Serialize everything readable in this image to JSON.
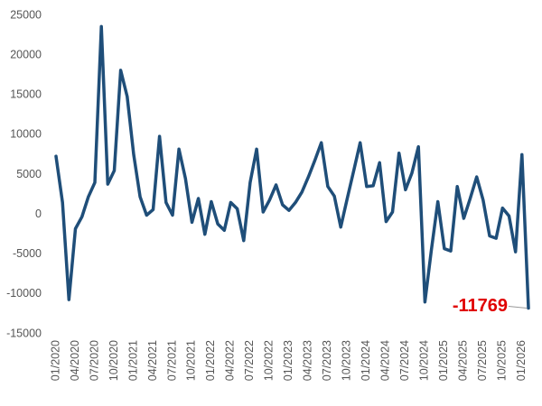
{
  "chart_data": {
    "type": "line",
    "categories": [
      "01/2020",
      null,
      null,
      "04/2020",
      null,
      null,
      "07/2020",
      null,
      null,
      "10/2020",
      null,
      null,
      "01/2021",
      null,
      null,
      "04/2021",
      null,
      null,
      "07/2021",
      null,
      null,
      "10/2021",
      null,
      null,
      "01/2022",
      null,
      null,
      "04/2022",
      null,
      null,
      "07/2022",
      null,
      null,
      "10/2022",
      null,
      null,
      "01/2023",
      null,
      null,
      "04/2023",
      null,
      null,
      "07/2023",
      null,
      null,
      "10/2023",
      null,
      null,
      "01/2024",
      null,
      null,
      "04/2024",
      null,
      null,
      "07/2024",
      null,
      null,
      "10/2024",
      null,
      null,
      "01/2025",
      null,
      null,
      "04/2025",
      null,
      null,
      "07/2025",
      null,
      null,
      "10/2025",
      null,
      null,
      "01/2026",
      null
    ],
    "series": [
      {
        "color": "#1f4e79",
        "values": [
          7300,
          1500,
          -10700,
          -1800,
          -300,
          2200,
          4000,
          23600,
          3800,
          5500,
          18100,
          14800,
          7500,
          2200,
          -100,
          600,
          9800,
          1500,
          -100,
          8200,
          4500,
          -1000,
          2000,
          -2500,
          1600,
          -1200,
          -2000,
          1500,
          700,
          -3300,
          4000,
          8200,
          300,
          1800,
          3700,
          1200,
          500,
          1500,
          2800,
          4700,
          6800,
          9000,
          3500,
          2300,
          -1600,
          2000,
          5500,
          9000,
          3500,
          3600,
          6500,
          -900,
          300,
          7700,
          3100,
          5200,
          8500,
          -11000,
          -4500,
          1600,
          -4300,
          -4600,
          3500,
          -500,
          2000,
          4700,
          1800,
          -2700,
          -3000,
          800,
          -200,
          -4700,
          7500,
          -11769
        ]
      }
    ],
    "ylim": [
      -15000,
      25000
    ],
    "yticks": [
      -15000,
      -10000,
      -5000,
      0,
      5000,
      10000,
      15000,
      20000,
      25000
    ],
    "grid": false,
    "label_color": "#e00000"
  }
}
